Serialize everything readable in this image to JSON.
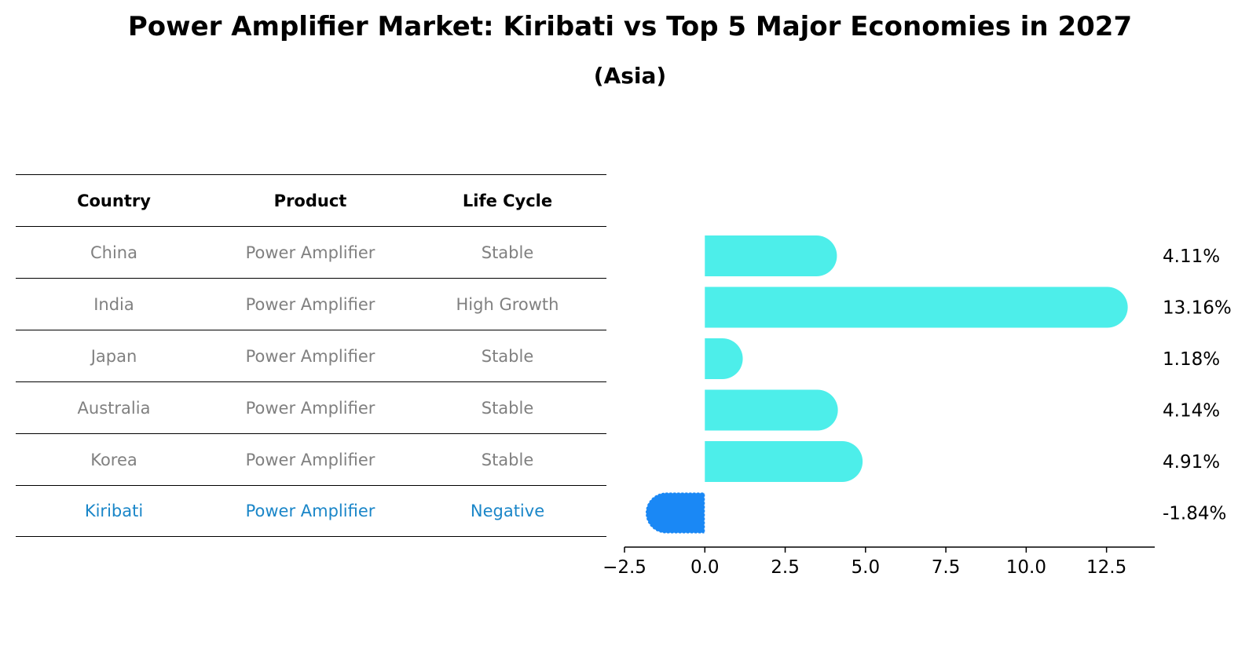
{
  "title": "Power Amplifier Market: Kiribati vs Top 5 Major Economies in 2027",
  "subtitle": "(Asia)",
  "table": {
    "headers": [
      "Country",
      "Product",
      "Life Cycle"
    ],
    "rows": [
      [
        "China",
        "Power Amplifier",
        "Stable"
      ],
      [
        "India",
        "Power Amplifier",
        "High Growth"
      ],
      [
        "Japan",
        "Power Amplifier",
        "Stable"
      ],
      [
        "Australia",
        "Power Amplifier",
        "Stable"
      ],
      [
        "Korea",
        "Power Amplifier",
        "Stable"
      ],
      [
        "Kiribati",
        "Power Amplifier",
        "Negative"
      ]
    ]
  },
  "chart_data": {
    "type": "bar",
    "orientation": "horizontal",
    "categories": [
      "China",
      "India",
      "Japan",
      "Australia",
      "Korea",
      "Kiribati"
    ],
    "values": [
      4.11,
      13.16,
      1.18,
      4.14,
      4.91,
      -1.84
    ],
    "data_labels": [
      "4.11%",
      "13.16%",
      "1.18%",
      "4.14%",
      "4.91%",
      "-1.84%"
    ],
    "xlim": [
      -2.5,
      14
    ],
    "xticks": [
      -2.5,
      0.0,
      2.5,
      5.0,
      7.5,
      10.0,
      12.5
    ],
    "xtick_labels": [
      "−2.5",
      "0.0",
      "2.5",
      "5.0",
      "7.5",
      "10.0",
      "12.5"
    ],
    "grid": false,
    "colors": {
      "positive": "#4deeea",
      "highlight": "#1a88f5"
    }
  }
}
